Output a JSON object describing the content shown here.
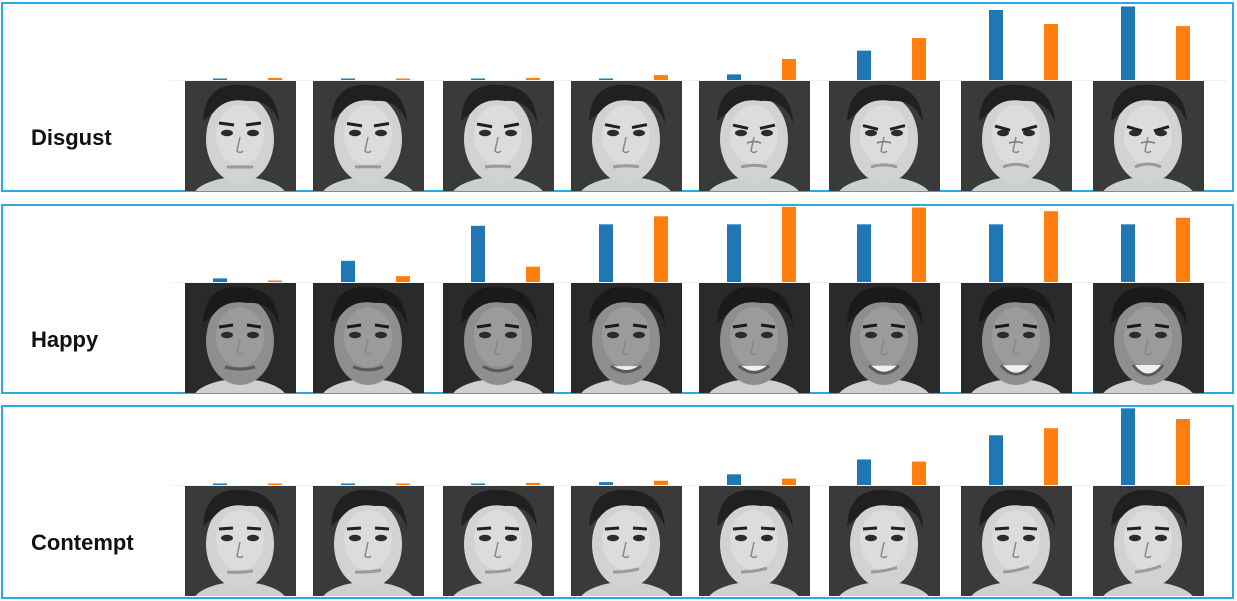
{
  "colors": {
    "border": "#29abe2",
    "series_a": "#1f77b4",
    "series_b": "#ff7f0e"
  },
  "rows": [
    {
      "label": "Disgust",
      "tone": "light",
      "expression": "disgust",
      "series_a": [
        0.01,
        0.01,
        0.01,
        0.02,
        0.08,
        0.42,
        1.0,
        1.05
      ],
      "series_b": [
        0.03,
        0.01,
        0.03,
        0.07,
        0.3,
        0.6,
        0.8,
        0.77
      ]
    },
    {
      "label": "Happy",
      "tone": "dark",
      "expression": "happy",
      "series_a": [
        0.05,
        0.29,
        0.77,
        0.79,
        0.79,
        0.79,
        0.79,
        0.79
      ],
      "series_b": [
        0.02,
        0.08,
        0.21,
        0.9,
        1.03,
        1.02,
        0.97,
        0.88
      ]
    },
    {
      "label": "Contempt",
      "tone": "light",
      "expression": "contempt",
      "series_a": [
        0.01,
        0.01,
        0.01,
        0.04,
        0.15,
        0.36,
        0.7,
        1.08
      ],
      "series_b": [
        0.01,
        0.02,
        0.03,
        0.06,
        0.09,
        0.33,
        0.8,
        0.93
      ]
    }
  ]
}
